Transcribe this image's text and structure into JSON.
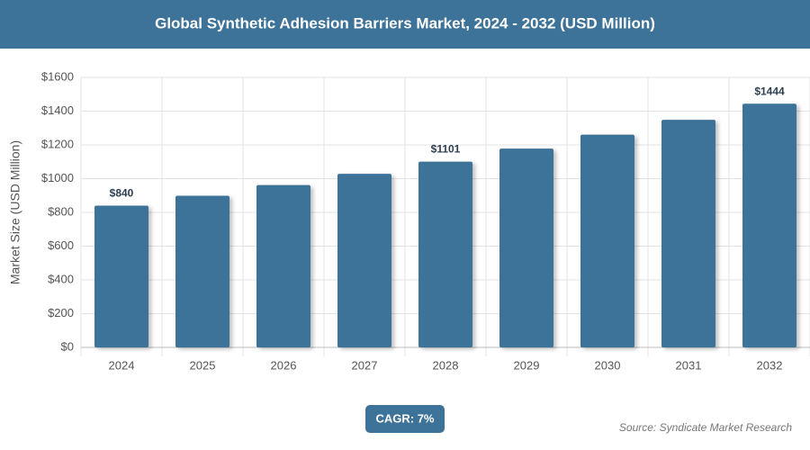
{
  "chart_data": {
    "type": "bar",
    "title": "Global Synthetic Adhesion Barriers Market, 2024 - 2032 (USD Million)",
    "y_axis_label": "Market Size (USD Million)",
    "categories": [
      "2024",
      "2025",
      "2026",
      "2027",
      "2028",
      "2029",
      "2030",
      "2031",
      "2032"
    ],
    "values": [
      840,
      899,
      962,
      1029,
      1101,
      1178,
      1261,
      1349,
      1444
    ],
    "value_labels": [
      "$840",
      null,
      null,
      null,
      "$1101",
      null,
      null,
      null,
      "$1444"
    ],
    "color": "#3e7399",
    "ylim": [
      0,
      1600
    ],
    "yticks": [
      {
        "value": 0,
        "label": "$0"
      },
      {
        "value": 200,
        "label": "$200"
      },
      {
        "value": 400,
        "label": "$400"
      },
      {
        "value": 600,
        "label": "$600"
      },
      {
        "value": 800,
        "label": "$800"
      },
      {
        "value": 1000,
        "label": "$1000"
      },
      {
        "value": 1200,
        "label": "$1200"
      },
      {
        "value": 1400,
        "label": "$1400"
      },
      {
        "value": 1600,
        "label": "$1600"
      }
    ],
    "grid": true,
    "cagr_label": "CAGR: 7%",
    "source": "Source: Syndicate Market Research"
  }
}
